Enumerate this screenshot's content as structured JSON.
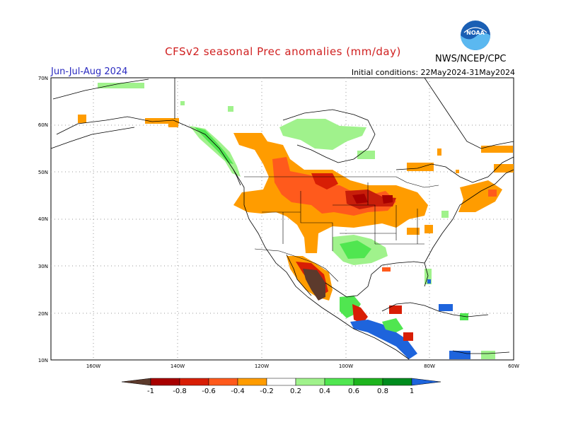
{
  "header": {
    "title": "CFSv2 seasonal Prec anomalies (mm/day)",
    "season": "Jun-Jul-Aug 2024",
    "initial_conditions": "Initial conditions: 22May2024-31May2024",
    "agency": "NWS/NCEP/CPC",
    "logo_text": "NOAA"
  },
  "axes": {
    "lat_labels": [
      "70N",
      "60N",
      "50N",
      "40N",
      "30N",
      "20N",
      "10N"
    ],
    "lon_labels": [
      "160W",
      "140W",
      "120W",
      "100W",
      "80W",
      "60W"
    ]
  },
  "colorbar": {
    "labels": [
      "-1",
      "-0.8",
      "-0.6",
      "-0.4",
      "-0.2",
      "0.2",
      "0.4",
      "0.6",
      "0.8",
      "1"
    ],
    "colors": [
      "#5c3a2c",
      "#a80000",
      "#d81e05",
      "#ff5a1c",
      "#ff9c00",
      "#ffffff",
      "#a0f28c",
      "#50e650",
      "#1eb41e",
      "#008c1e",
      "#1e64dc"
    ]
  },
  "colors": {
    "dry_strong": "#5c3a2c",
    "dry_red": "#c81e0a",
    "dry_orange": "#ff9c00",
    "wet_light": "#a0f28c",
    "wet_green": "#50e650",
    "wet_blue": "#1e64dc"
  }
}
